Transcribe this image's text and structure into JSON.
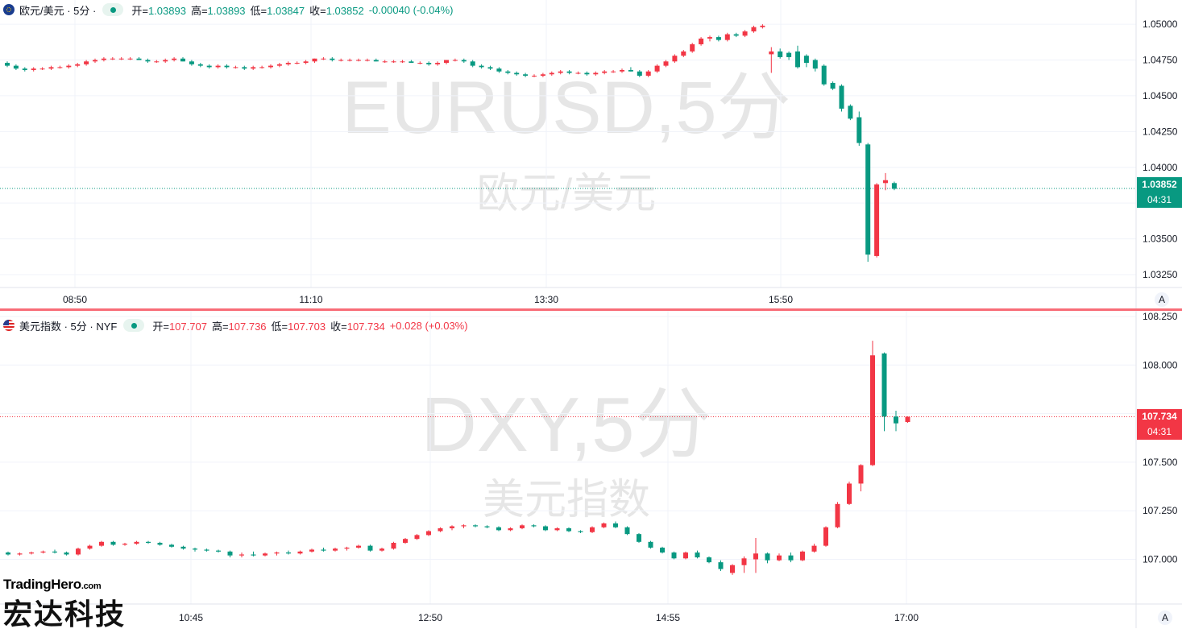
{
  "top_header": {
    "symbol": "欧元/美元 · 5分 ·",
    "open_label": "开=",
    "open": "1.03893",
    "high_label": "高=",
    "high": "1.03893",
    "low_label": "低=",
    "low": "1.03847",
    "close_label": "收=",
    "close": "1.03852",
    "change": "-0.00040 (-0.04%)"
  },
  "bottom_header": {
    "symbol": "美元指数 · 5分 · NYF",
    "open_label": "开=",
    "open": "107.707",
    "high_label": "高=",
    "high": "107.736",
    "low_label": "低=",
    "low": "107.703",
    "close_label": "收=",
    "close": "107.734",
    "change": "+0.028 (+0.03%)"
  },
  "top_price_tag": {
    "price": "1.03852",
    "time": "04:31",
    "color": "#089981"
  },
  "bottom_price_tag": {
    "price": "107.734",
    "time": "04:31",
    "color": "#f23645"
  },
  "scale_button": "A",
  "watermark": {
    "brand": "TradingHero",
    "domain": ".com",
    "cn": "宏达科技"
  },
  "colors": {
    "up": "#f23645",
    "down": "#089981",
    "grid": "#f0f3fa",
    "axis_text": "#131722",
    "watermark_text": "#e6e6e6"
  },
  "chart_data": [
    {
      "type": "candlestick",
      "symbol_watermark": "EURUSD,5分",
      "name_watermark": "欧元/美元",
      "x_tick_labels": [
        "08:50",
        "11:10",
        "13:30",
        "15:50"
      ],
      "y_tick_labels": [
        "1.05000",
        "1.04750",
        "1.04500",
        "1.04250",
        "1.04000",
        "1.03750",
        "1.03500",
        "1.03250"
      ],
      "ylim": [
        1.0316,
        1.0513
      ],
      "last_price": 1.03852,
      "candles": [
        [
          1.0473,
          1.0474,
          1.047,
          1.0471
        ],
        [
          1.0471,
          1.0472,
          1.0468,
          1.0469
        ],
        [
          1.0469,
          1.047,
          1.0467,
          1.0468
        ],
        [
          1.0468,
          1.047,
          1.0467,
          1.0469
        ],
        [
          1.0469,
          1.047,
          1.0468,
          1.0469
        ],
        [
          1.0469,
          1.0471,
          1.0468,
          1.047
        ],
        [
          1.047,
          1.0471,
          1.0469,
          1.047
        ],
        [
          1.047,
          1.0472,
          1.0469,
          1.0471
        ],
        [
          1.0471,
          1.0473,
          1.047,
          1.0472
        ],
        [
          1.0472,
          1.0475,
          1.0471,
          1.0474
        ],
        [
          1.0474,
          1.0476,
          1.0473,
          1.0475
        ],
        [
          1.0475,
          1.0477,
          1.0474,
          1.0476
        ],
        [
          1.0476,
          1.0477,
          1.0475,
          1.0476
        ],
        [
          1.0476,
          1.0477,
          1.0475,
          1.0476
        ],
        [
          1.0476,
          1.0477,
          1.0475,
          1.0476
        ],
        [
          1.0476,
          1.0477,
          1.0475,
          1.0475
        ],
        [
          1.0475,
          1.0476,
          1.0473,
          1.0474
        ],
        [
          1.0474,
          1.0475,
          1.0473,
          1.0474
        ],
        [
          1.0474,
          1.0476,
          1.0473,
          1.0475
        ],
        [
          1.0475,
          1.0477,
          1.0474,
          1.0476
        ],
        [
          1.0476,
          1.0477,
          1.0474,
          1.0474
        ],
        [
          1.0474,
          1.0475,
          1.0471,
          1.0472
        ],
        [
          1.0472,
          1.0473,
          1.047,
          1.0471
        ],
        [
          1.0471,
          1.0472,
          1.0469,
          1.047
        ],
        [
          1.047,
          1.0472,
          1.0469,
          1.0471
        ],
        [
          1.0471,
          1.0472,
          1.0469,
          1.047
        ],
        [
          1.047,
          1.0471,
          1.0469,
          1.047
        ],
        [
          1.047,
          1.0471,
          1.0468,
          1.0469
        ],
        [
          1.0469,
          1.0471,
          1.0468,
          1.047
        ],
        [
          1.047,
          1.0471,
          1.0469,
          1.047
        ],
        [
          1.047,
          1.0472,
          1.0469,
          1.0471
        ],
        [
          1.0471,
          1.0473,
          1.047,
          1.0472
        ],
        [
          1.0472,
          1.0474,
          1.0471,
          1.0473
        ],
        [
          1.0473,
          1.0474,
          1.0472,
          1.0473
        ],
        [
          1.0473,
          1.0475,
          1.0472,
          1.0474
        ],
        [
          1.0474,
          1.0476,
          1.0473,
          1.0476
        ],
        [
          1.0476,
          1.0477,
          1.0475,
          1.0476
        ],
        [
          1.0476,
          1.0477,
          1.0474,
          1.0475
        ],
        [
          1.0475,
          1.0476,
          1.0474,
          1.0475
        ],
        [
          1.0475,
          1.0476,
          1.0474,
          1.0475
        ],
        [
          1.0475,
          1.0476,
          1.0474,
          1.0475
        ],
        [
          1.0475,
          1.0476,
          1.0474,
          1.0475
        ],
        [
          1.0475,
          1.0476,
          1.0474,
          1.0474
        ],
        [
          1.0474,
          1.0475,
          1.0473,
          1.0474
        ],
        [
          1.0474,
          1.0475,
          1.0473,
          1.0474
        ],
        [
          1.0474,
          1.0475,
          1.0473,
          1.0474
        ],
        [
          1.0474,
          1.0475,
          1.0473,
          1.0473
        ],
        [
          1.0473,
          1.0474,
          1.0472,
          1.0473
        ],
        [
          1.0473,
          1.0474,
          1.0471,
          1.0472
        ],
        [
          1.0472,
          1.0474,
          1.0471,
          1.0473
        ],
        [
          1.0473,
          1.0475,
          1.0472,
          1.0475
        ],
        [
          1.0475,
          1.0476,
          1.0474,
          1.0475
        ],
        [
          1.0475,
          1.0476,
          1.0473,
          1.0474
        ],
        [
          1.0474,
          1.0475,
          1.047,
          1.0471
        ],
        [
          1.0471,
          1.0472,
          1.0469,
          1.047
        ],
        [
          1.047,
          1.0471,
          1.0468,
          1.0469
        ],
        [
          1.0469,
          1.047,
          1.0466,
          1.0467
        ],
        [
          1.0467,
          1.0468,
          1.0465,
          1.0466
        ],
        [
          1.0466,
          1.0467,
          1.0464,
          1.0465
        ],
        [
          1.0465,
          1.0466,
          1.0463,
          1.0464
        ],
        [
          1.0464,
          1.0465,
          1.0463,
          1.0464
        ],
        [
          1.0464,
          1.0466,
          1.0463,
          1.0465
        ],
        [
          1.0465,
          1.0467,
          1.0464,
          1.0466
        ],
        [
          1.0466,
          1.0468,
          1.0465,
          1.0467
        ],
        [
          1.0467,
          1.0468,
          1.0465,
          1.0466
        ],
        [
          1.0466,
          1.0467,
          1.0465,
          1.0466
        ],
        [
          1.0466,
          1.0467,
          1.0464,
          1.0465
        ],
        [
          1.0465,
          1.0467,
          1.0464,
          1.0466
        ],
        [
          1.0466,
          1.0468,
          1.0465,
          1.0467
        ],
        [
          1.0467,
          1.0468,
          1.0466,
          1.0467
        ],
        [
          1.0467,
          1.0469,
          1.0466,
          1.0468
        ],
        [
          1.0468,
          1.047,
          1.0467,
          1.0467
        ],
        [
          1.0467,
          1.0468,
          1.0463,
          1.0464
        ],
        [
          1.0464,
          1.0468,
          1.0463,
          1.0467
        ],
        [
          1.0467,
          1.0472,
          1.0466,
          1.0471
        ],
        [
          1.0471,
          1.0475,
          1.047,
          1.0474
        ],
        [
          1.0474,
          1.0479,
          1.0473,
          1.0478
        ],
        [
          1.0478,
          1.0482,
          1.0477,
          1.0481
        ],
        [
          1.0481,
          1.0487,
          1.048,
          1.0486
        ],
        [
          1.0486,
          1.0491,
          1.0485,
          1.049
        ],
        [
          1.049,
          1.0492,
          1.0488,
          1.0491
        ],
        [
          1.0491,
          1.0492,
          1.0488,
          1.0489
        ],
        [
          1.0489,
          1.0494,
          1.0488,
          1.0493
        ],
        [
          1.0493,
          1.0494,
          1.0491,
          1.0492
        ],
        [
          1.0492,
          1.0496,
          1.0491,
          1.0495
        ],
        [
          1.0495,
          1.0499,
          1.0494,
          1.0498
        ],
        [
          1.0498,
          1.05,
          1.0497,
          1.0499
        ],
        [
          1.0479,
          1.0484,
          1.0466,
          1.0481
        ],
        [
          1.0481,
          1.0483,
          1.0476,
          1.0477
        ],
        [
          1.048,
          1.0481,
          1.0475,
          1.0477
        ],
        [
          1.0481,
          1.0485,
          1.0469,
          1.047
        ],
        [
          1.0478,
          1.0479,
          1.047,
          1.0473
        ],
        [
          1.0475,
          1.0476,
          1.0467,
          1.0469
        ],
        [
          1.0471,
          1.0472,
          1.0457,
          1.0458
        ],
        [
          1.0459,
          1.046,
          1.0454,
          1.0455
        ],
        [
          1.0457,
          1.0458,
          1.0439,
          1.0441
        ],
        [
          1.0443,
          1.0444,
          1.0433,
          1.0434
        ],
        [
          1.0435,
          1.0439,
          1.0415,
          1.0417
        ],
        [
          1.0416,
          1.0417,
          1.0334,
          1.0339
        ],
        [
          1.0338,
          1.0389,
          1.0337,
          1.0388
        ],
        [
          1.0389,
          1.0396,
          1.0384,
          1.0391
        ],
        [
          1.0389,
          1.039,
          1.0384,
          1.0385
        ]
      ]
    },
    {
      "type": "candlestick",
      "symbol_watermark": "DXY,5分",
      "name_watermark": "美元指数",
      "x_tick_labels": [
        "10:45",
        "12:50",
        "14:55",
        "17:00"
      ],
      "y_tick_labels": [
        "108.250",
        "108.000",
        "107.750",
        "107.500",
        "107.250",
        "107.000"
      ],
      "ylim": [
        106.77,
        108.25
      ],
      "last_price": 107.734,
      "candles": [
        [
          107.035,
          107.04,
          107.02,
          107.025
        ],
        [
          107.025,
          107.035,
          107.02,
          107.03
        ],
        [
          107.03,
          107.04,
          107.025,
          107.035
        ],
        [
          107.035,
          107.045,
          107.03,
          107.04
        ],
        [
          107.04,
          107.05,
          107.03,
          107.035
        ],
        [
          107.035,
          107.04,
          107.02,
          107.025
        ],
        [
          107.025,
          107.06,
          107.02,
          107.055
        ],
        [
          107.055,
          107.075,
          107.05,
          107.07
        ],
        [
          107.07,
          107.095,
          107.065,
          107.09
        ],
        [
          107.09,
          107.095,
          107.07,
          107.075
        ],
        [
          107.075,
          107.085,
          107.07,
          107.08
        ],
        [
          107.08,
          107.095,
          107.075,
          107.09
        ],
        [
          107.09,
          107.095,
          107.08,
          107.085
        ],
        [
          107.085,
          107.09,
          107.07,
          107.075
        ],
        [
          107.075,
          107.08,
          107.06,
          107.065
        ],
        [
          107.065,
          107.07,
          107.05,
          107.055
        ],
        [
          107.055,
          107.06,
          107.04,
          107.05
        ],
        [
          107.05,
          107.055,
          107.04,
          107.045
        ],
        [
          107.045,
          107.05,
          107.035,
          107.04
        ],
        [
          107.04,
          107.045,
          107.01,
          107.02
        ],
        [
          107.02,
          107.035,
          107.01,
          107.025
        ],
        [
          107.025,
          107.04,
          107.015,
          107.02
        ],
        [
          107.02,
          107.035,
          107.015,
          107.03
        ],
        [
          107.03,
          107.04,
          107.02,
          107.035
        ],
        [
          107.035,
          107.045,
          107.025,
          107.03
        ],
        [
          107.03,
          107.045,
          107.025,
          107.04
        ],
        [
          107.04,
          107.055,
          107.035,
          107.05
        ],
        [
          107.05,
          107.06,
          107.04,
          107.045
        ],
        [
          107.045,
          107.06,
          107.04,
          107.055
        ],
        [
          107.055,
          107.065,
          107.045,
          107.06
        ],
        [
          107.06,
          107.075,
          107.055,
          107.07
        ],
        [
          107.07,
          107.075,
          107.04,
          107.045
        ],
        [
          107.045,
          107.06,
          107.04,
          107.055
        ],
        [
          107.055,
          107.09,
          107.05,
          107.085
        ],
        [
          107.085,
          107.11,
          107.08,
          107.105
        ],
        [
          107.105,
          107.13,
          107.1,
          107.125
        ],
        [
          107.125,
          107.15,
          107.12,
          107.145
        ],
        [
          107.145,
          107.165,
          107.14,
          107.16
        ],
        [
          107.16,
          107.175,
          107.15,
          107.17
        ],
        [
          107.17,
          107.18,
          107.16,
          107.175
        ],
        [
          107.175,
          107.18,
          107.165,
          107.17
        ],
        [
          107.17,
          107.175,
          107.16,
          107.165
        ],
        [
          107.165,
          107.17,
          107.145,
          107.15
        ],
        [
          107.15,
          107.165,
          107.145,
          107.16
        ],
        [
          107.16,
          107.18,
          107.155,
          107.175
        ],
        [
          107.175,
          107.18,
          107.165,
          107.17
        ],
        [
          107.17,
          107.175,
          107.145,
          107.15
        ],
        [
          107.15,
          107.165,
          107.145,
          107.16
        ],
        [
          107.16,
          107.165,
          107.14,
          107.145
        ],
        [
          107.145,
          107.15,
          107.135,
          107.14
        ],
        [
          107.14,
          107.17,
          107.135,
          107.165
        ],
        [
          107.165,
          107.19,
          107.16,
          107.185
        ],
        [
          107.185,
          107.195,
          107.16,
          107.165
        ],
        [
          107.165,
          107.17,
          107.125,
          107.13
        ],
        [
          107.13,
          107.135,
          107.085,
          107.09
        ],
        [
          107.09,
          107.095,
          107.055,
          107.06
        ],
        [
          107.06,
          107.065,
          107.03,
          107.035
        ],
        [
          107.035,
          107.04,
          107.0,
          107.005
        ],
        [
          107.005,
          107.04,
          107.0,
          107.035
        ],
        [
          107.035,
          107.045,
          107.005,
          107.01
        ],
        [
          107.01,
          107.015,
          106.98,
          106.985
        ],
        [
          106.985,
          106.995,
          106.94,
          106.95
        ],
        [
          106.93,
          106.975,
          106.92,
          106.97
        ],
        [
          106.97,
          107.015,
          106.93,
          107.005
        ],
        [
          107.0,
          107.11,
          106.93,
          107.03
        ],
        [
          107.03,
          107.035,
          106.98,
          106.995
        ],
        [
          106.995,
          107.03,
          106.99,
          107.02
        ],
        [
          107.02,
          107.035,
          106.985,
          106.995
        ],
        [
          106.995,
          107.045,
          106.99,
          107.04
        ],
        [
          107.04,
          107.08,
          107.035,
          107.07
        ],
        [
          107.07,
          107.17,
          107.065,
          107.165
        ],
        [
          107.165,
          107.295,
          107.16,
          107.285
        ],
        [
          107.285,
          107.4,
          107.28,
          107.39
        ],
        [
          107.39,
          107.49,
          107.35,
          107.485
        ],
        [
          107.485,
          108.125,
          107.48,
          108.05
        ],
        [
          108.06,
          108.065,
          107.66,
          107.735
        ],
        [
          107.735,
          107.765,
          107.66,
          107.7
        ],
        [
          107.707,
          107.736,
          107.703,
          107.734
        ]
      ]
    }
  ]
}
